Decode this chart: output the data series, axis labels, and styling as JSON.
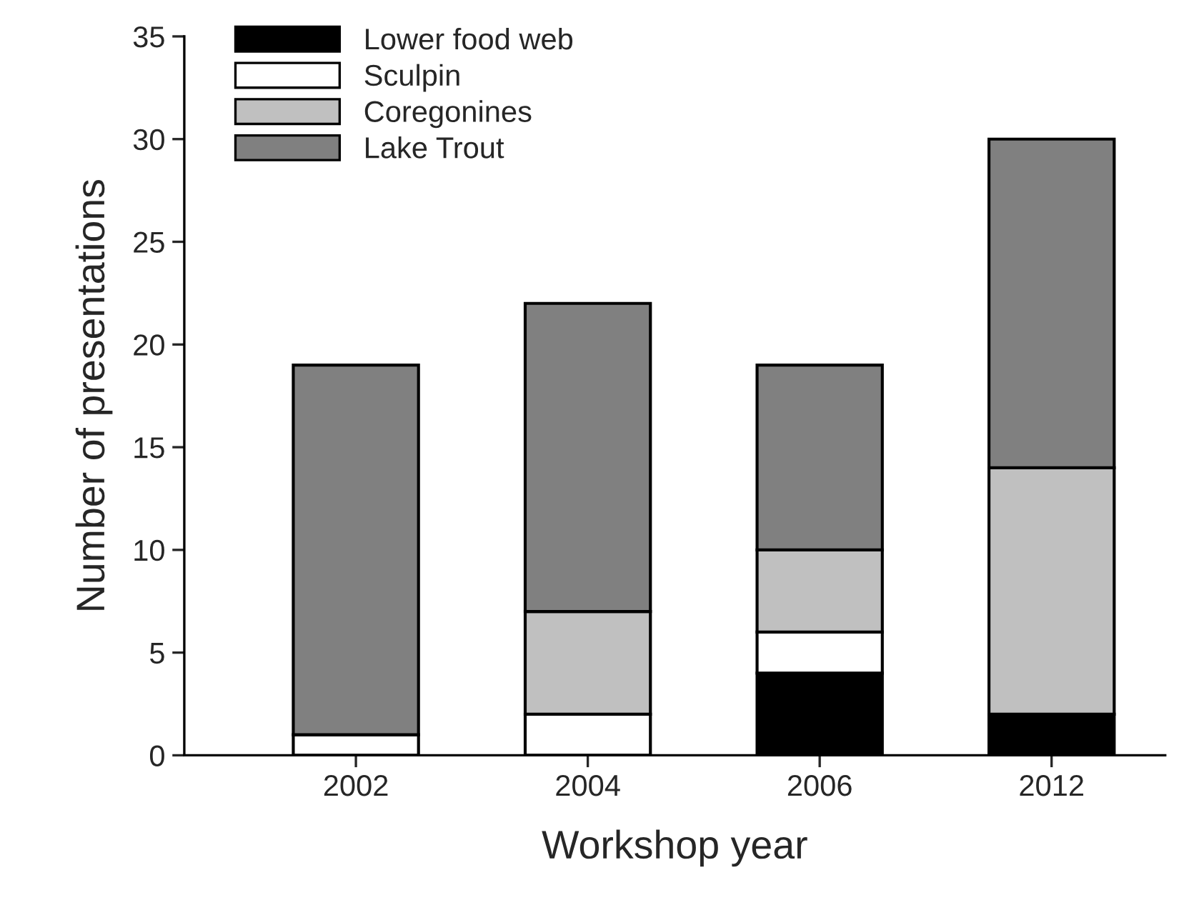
{
  "chart_data": {
    "type": "bar",
    "stacked": true,
    "xlabel": "Workshop year",
    "ylabel": "Number of presentations",
    "categories": [
      "2002",
      "2004",
      "2006",
      "2012"
    ],
    "series": [
      {
        "name": "Lower food web",
        "color": "#000000",
        "values": [
          0,
          0,
          4,
          2
        ]
      },
      {
        "name": "Sculpin",
        "color": "#ffffff",
        "values": [
          1,
          2,
          2,
          0
        ]
      },
      {
        "name": "Coregonines",
        "color": "#c0c0c0",
        "values": [
          0,
          5,
          4,
          12
        ]
      },
      {
        "name": "Lake Trout",
        "color": "#808080",
        "values": [
          18,
          15,
          9,
          16
        ]
      }
    ],
    "ylim": [
      0,
      35
    ],
    "yticks": [
      0,
      5,
      10,
      15,
      20,
      25,
      30,
      35
    ],
    "grid": false,
    "legend": "top left"
  }
}
